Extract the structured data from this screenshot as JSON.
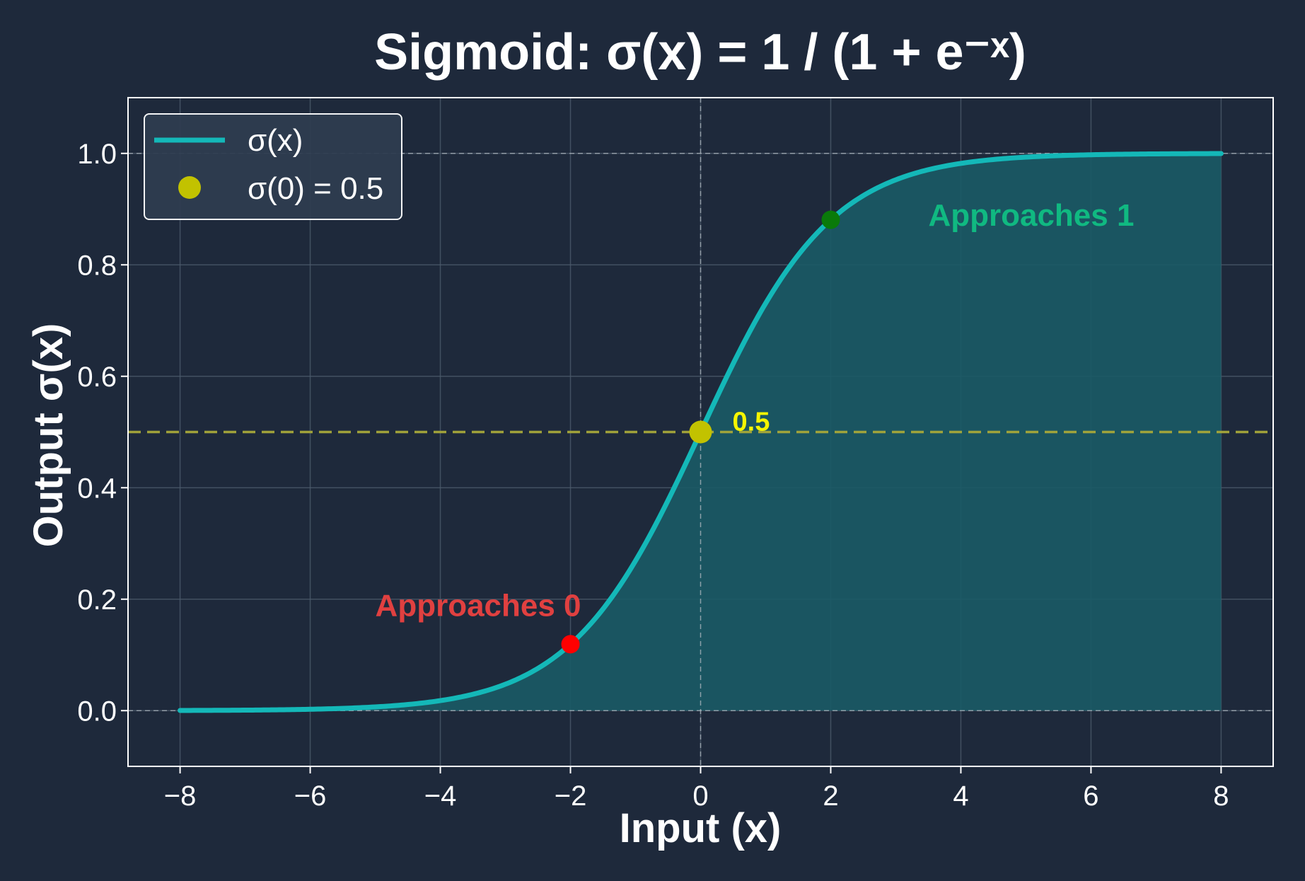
{
  "chart_data": {
    "type": "line",
    "title": "Sigmoid: σ(x) = 1 / (1 + e⁻ˣ)",
    "xlabel": "Input (x)",
    "ylabel": "Output σ(x)",
    "xlim": [
      -8.8,
      8.8
    ],
    "ylim": [
      -0.1,
      1.1
    ],
    "x_ticks": [
      -8,
      -6,
      -4,
      -2,
      0,
      2,
      4,
      6,
      8
    ],
    "x_tick_labels": [
      "−8",
      "−6",
      "−4",
      "−2",
      "0",
      "2",
      "4",
      "6",
      "8"
    ],
    "y_ticks": [
      0.0,
      0.2,
      0.4,
      0.6,
      0.8,
      1.0
    ],
    "y_tick_labels": [
      "0.0",
      "0.2",
      "0.4",
      "0.6",
      "0.8",
      "1.0"
    ],
    "grid": true,
    "legend_position": "top-left",
    "series": [
      {
        "name": "σ(x)",
        "function": "1 / (1 + exp(-x))",
        "x_range": [
          -8,
          8
        ],
        "fill_to_zero": true,
        "color": "#14b8b8",
        "fill_color": "#1a5a66"
      }
    ],
    "highlight_point": {
      "name": "σ(0) = 0.5",
      "x": 0,
      "y": 0.5,
      "color": "#c2c200",
      "label": "0.5",
      "label_color": "#f5f500"
    },
    "reference_lines": [
      {
        "axis": "y",
        "value": 0.5,
        "color": "#a8a83a",
        "style": "dashed"
      },
      {
        "axis": "y",
        "value": 1.0,
        "color": "#b0b8c0",
        "style": "dashed"
      },
      {
        "axis": "y",
        "value": 0.0,
        "color": "#b0b8c0",
        "style": "dashed"
      },
      {
        "axis": "x",
        "value": 0,
        "color": "#b0b8c0",
        "style": "dashed"
      }
    ],
    "markers": [
      {
        "x": -2,
        "y": 0.1192,
        "color": "#ff0000"
      },
      {
        "x": 2,
        "y": 0.8808,
        "color": "#0a7a0a"
      }
    ],
    "annotations": [
      {
        "text": "Approaches 0",
        "x": -5.0,
        "y": 0.17,
        "color": "#e04040",
        "anchor": "start"
      },
      {
        "text": "Approaches 1",
        "x": 3.5,
        "y": 0.87,
        "color": "#10b981",
        "anchor": "start"
      }
    ],
    "colors": {
      "background": "#1e293b",
      "axes_frame": "#ffffff",
      "grid": "#4b5a6b",
      "legend_bg": "#2e3d50",
      "legend_border": "#ffffff"
    }
  }
}
